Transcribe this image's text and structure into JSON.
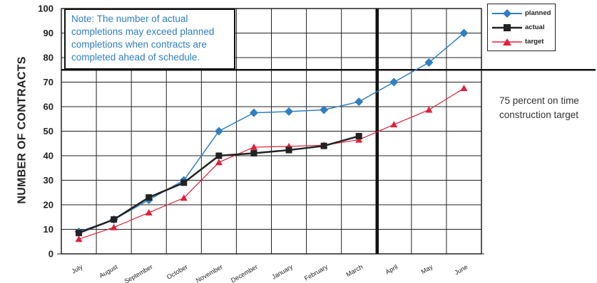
{
  "chart_data": {
    "type": "line",
    "title": "",
    "xlabel": "",
    "ylabel": "NUMBER OF CONTRACTS",
    "ylim": [
      0,
      100
    ],
    "yticks": [
      "0",
      "10",
      "20",
      "30",
      "40",
      "50",
      "60",
      "70",
      "80",
      "90",
      "100"
    ],
    "categories": [
      "July",
      "August",
      "September",
      "October",
      "November",
      "December",
      "January",
      "February",
      "March",
      "April",
      "May",
      "June"
    ],
    "series": [
      {
        "name": "planned",
        "color": "#2f7fc1",
        "marker": "diamond",
        "values": [
          9,
          14,
          22,
          30,
          50,
          57.5,
          58,
          58.7,
          62,
          70,
          78,
          90
        ]
      },
      {
        "name": "actual",
        "color": "#222222",
        "marker": "square",
        "values": [
          8.5,
          14,
          23,
          29,
          40,
          41,
          42.3,
          44,
          48,
          null,
          null,
          null
        ]
      },
      {
        "name": "target",
        "color": "#e0203a",
        "marker": "triangle",
        "values": [
          6,
          10.8,
          16.8,
          22.8,
          37.3,
          43.5,
          43.8,
          44.3,
          46.5,
          52.7,
          58.7,
          67.5
        ]
      }
    ],
    "reference_line_y": 75,
    "current_month_marker": "March",
    "legend_position": "top-right",
    "grid": true
  },
  "note": {
    "lines": [
      "Note: The number of actual",
      "completions may exceed planned",
      "completions when contracts are",
      "completed ahead of schedule."
    ]
  },
  "side_annotation": {
    "lines": [
      "75 percent on time",
      "construction target"
    ]
  }
}
